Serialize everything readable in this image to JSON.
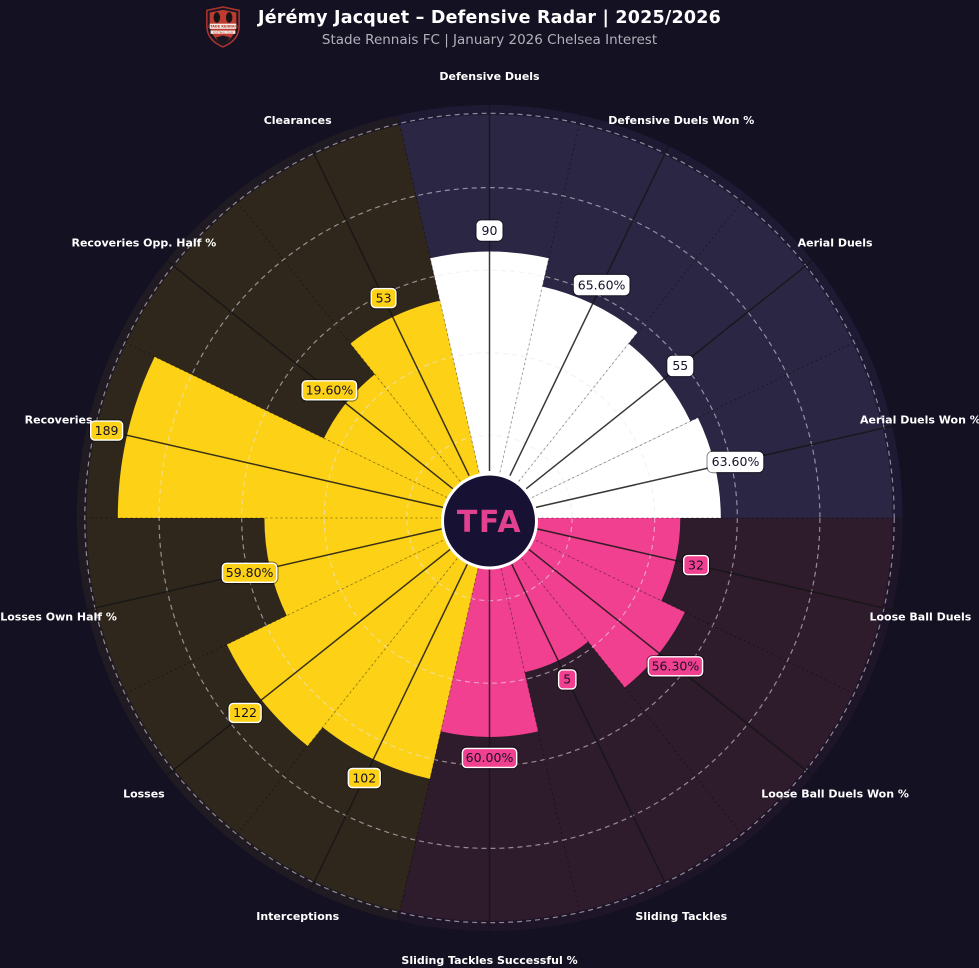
{
  "header": {
    "title": "Jérémy Jacquet – Defensive Radar | 2025/2026",
    "subtitle": "Stade Rennais FC | January 2026 Chelsea Interest",
    "club_logo": "stade-rennais-crest"
  },
  "center_badge": {
    "text": "TFA",
    "bg": "#171134",
    "text_color": "#e2418f",
    "ring_color": "#ffffff"
  },
  "colors": {
    "page_bg": "#141122",
    "title": "#ffffff",
    "subtitle": "#b2b2bc",
    "param_label": "#ffffff",
    "value_text": "#15102a",
    "value_box_border": "#ffffff",
    "grid_line": "rgba(235,230,240,0.55)",
    "spoke_center": "#161616",
    "spoke_boundary": "rgba(0,0,0,0.38)",
    "outer_rim": "rgba(20,16,40,0.55)"
  },
  "chart_data": {
    "type": "radar-pizza",
    "title": "Jérémy Jacquet – Defensive Radar | 2025/2026",
    "subtitle": "Stade Rennais FC | January 2026 Chelsea Interest",
    "direction": "clockwise",
    "start": "top",
    "slice_count": 14,
    "groups": {
      "duels": {
        "slice_color": "#ffffff",
        "bg_color": "#2b2644"
      },
      "ball_winning": {
        "slice_color": "#f0408f",
        "bg_color": "#2e1b2c"
      },
      "defensive_actions": {
        "slice_color": "#fcd116",
        "bg_color": "#2f271c"
      }
    },
    "slices": [
      {
        "param": "Defensive Duels",
        "value": "90",
        "value_numeric": 90,
        "radius_frac": 0.645,
        "group": "duels"
      },
      {
        "param": "Defensive Duels Won %",
        "value": "65.60%",
        "value_numeric": 65.6,
        "radius_frac": 0.575,
        "group": "duels"
      },
      {
        "param": "Aerial Duels",
        "value": "55",
        "value_numeric": 55,
        "radius_frac": 0.54,
        "group": "duels"
      },
      {
        "param": "Aerial Duels Won %",
        "value": "63.60%",
        "value_numeric": 63.6,
        "radius_frac": 0.56,
        "group": "duels"
      },
      {
        "param": "Loose Ball Duels",
        "value": "32",
        "value_numeric": 32,
        "radius_frac": 0.462,
        "group": "ball_winning"
      },
      {
        "param": "Loose Ball Duels Won %",
        "value": "56.30%",
        "value_numeric": 56.3,
        "radius_frac": 0.525,
        "group": "ball_winning"
      },
      {
        "param": "Sliding Tackles",
        "value": "5",
        "value_numeric": 5,
        "radius_frac": 0.383,
        "group": "ball_winning"
      },
      {
        "param": "Sliding Tackles Successful %",
        "value": "60.00%",
        "value_numeric": 60.0,
        "radius_frac": 0.53,
        "group": "ball_winning"
      },
      {
        "param": "Interceptions",
        "value": "102",
        "value_numeric": 102,
        "radius_frac": 0.648,
        "group": "defensive_actions"
      },
      {
        "param": "Losses",
        "value": "122",
        "value_numeric": 122,
        "radius_frac": 0.706,
        "group": "defensive_actions"
      },
      {
        "param": "Losses Own Half %",
        "value": "59.80%",
        "value_numeric": 59.8,
        "radius_frac": 0.545,
        "group": "defensive_actions"
      },
      {
        "param": "Recoveries",
        "value": "189",
        "value_numeric": 189,
        "radius_frac": 0.9,
        "group": "defensive_actions"
      },
      {
        "param": "Recoveries Opp. Half %",
        "value": "19.60%",
        "value_numeric": 19.6,
        "radius_frac": 0.445,
        "group": "defensive_actions"
      },
      {
        "param": "Clearances",
        "value": "53",
        "value_numeric": 53,
        "radius_frac": 0.54,
        "group": "defensive_actions"
      }
    ],
    "gridlines": {
      "fractions": [
        0.2,
        0.4,
        0.6,
        0.8,
        0.98
      ],
      "style": "dashed"
    },
    "legend_position": "none"
  }
}
